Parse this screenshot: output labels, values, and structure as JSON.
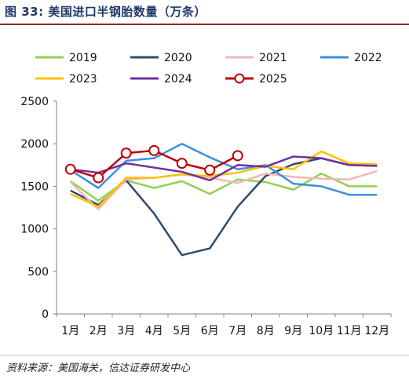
{
  "figure": {
    "title": "图 33:  美国进口半钢胎数量（万条）",
    "source": "资料来源：美国海关，信达证券研发中心"
  },
  "chart_data": {
    "type": "line",
    "categories": [
      "1月",
      "2月",
      "3月",
      "4月",
      "5月",
      "6月",
      "7月",
      "8月",
      "9月",
      "10月",
      "11月",
      "12月"
    ],
    "ylim": [
      0,
      2500
    ],
    "yticks": [
      "0",
      "500",
      "1000",
      "1500",
      "2000",
      "2500"
    ],
    "grid": false,
    "legend_position": "top",
    "series": [
      {
        "name": "2019",
        "color": "#92d050",
        "marker": false,
        "values": [
          1560,
          1330,
          1570,
          1480,
          1560,
          1410,
          1580,
          1550,
          1460,
          1650,
          1500,
          1500
        ]
      },
      {
        "name": "2020",
        "color": "#2e4a70",
        "marker": false,
        "values": [
          1450,
          1280,
          1570,
          1180,
          690,
          770,
          1260,
          1620,
          1760,
          1830,
          1750,
          1740
        ]
      },
      {
        "name": "2021",
        "color": "#f4b6b6",
        "marker": false,
        "values": [
          1550,
          1230,
          1580,
          1600,
          1640,
          1600,
          1540,
          1650,
          1610,
          1590,
          1580,
          1680
        ]
      },
      {
        "name": "2022",
        "color": "#3c8fe0",
        "marker": false,
        "values": [
          1690,
          1480,
          1800,
          1830,
          2000,
          1840,
          1700,
          1750,
          1530,
          1500,
          1400,
          1400
        ]
      },
      {
        "name": "2023",
        "color": "#ffc000",
        "marker": false,
        "values": [
          1410,
          1260,
          1600,
          1600,
          1640,
          1620,
          1660,
          1740,
          1700,
          1910,
          1770,
          1760
        ]
      },
      {
        "name": "2024",
        "color": "#7030a0",
        "marker": false,
        "values": [
          1700,
          1660,
          1770,
          1720,
          1670,
          1570,
          1750,
          1730,
          1850,
          1830,
          1750,
          1740
        ]
      },
      {
        "name": "2025",
        "color": "#c00000",
        "marker": true,
        "values": [
          1700,
          1600,
          1890,
          1920,
          1770,
          1690,
          1860,
          null,
          null,
          null,
          null,
          null
        ]
      }
    ]
  }
}
